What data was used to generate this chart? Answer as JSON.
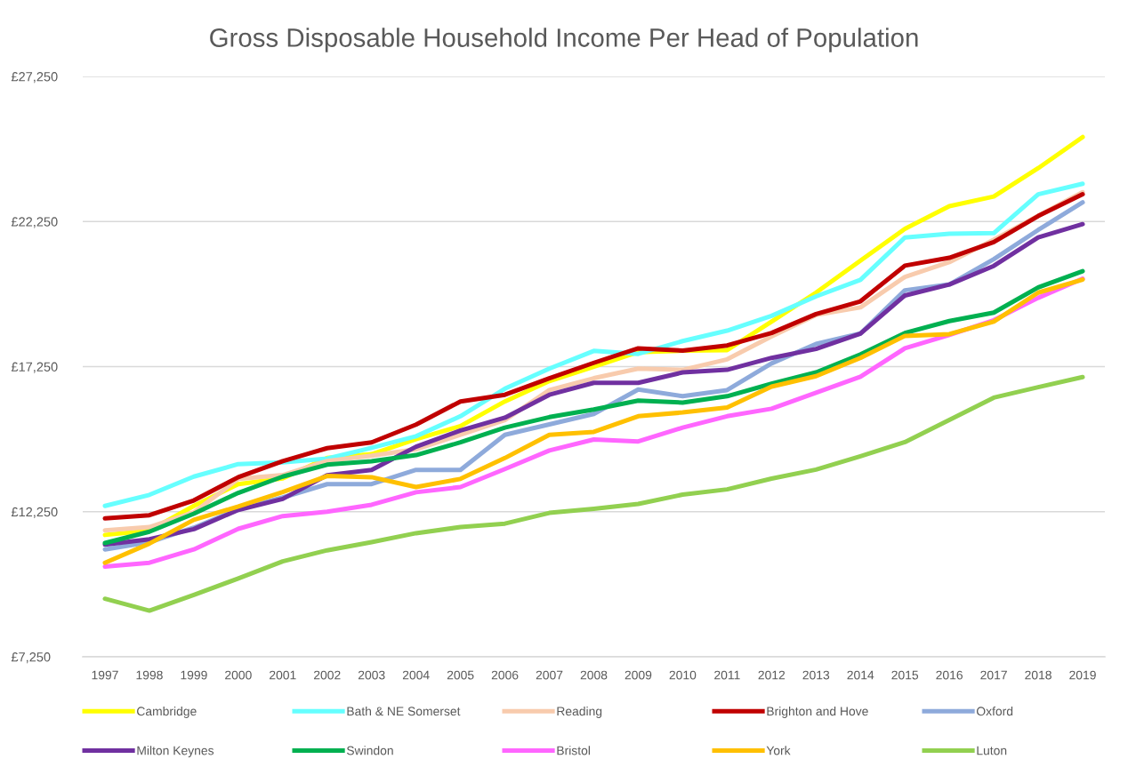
{
  "chart_data": {
    "type": "line",
    "title": "Gross Disposable Household Income Per Head of Population",
    "categories": [
      "1997",
      "1998",
      "1999",
      "2000",
      "2001",
      "2002",
      "2003",
      "2004",
      "2005",
      "2006",
      "2007",
      "2008",
      "2009",
      "2010",
      "2011",
      "2012",
      "2013",
      "2014",
      "2015",
      "2016",
      "2017",
      "2018",
      "2019"
    ],
    "ylim": [
      7250,
      27250
    ],
    "yticks": [
      {
        "value": 7250,
        "label": "£7,250"
      },
      {
        "value": 12250,
        "label": "£12,250"
      },
      {
        "value": 17250,
        "label": "£17,250"
      },
      {
        "value": 22250,
        "label": "£22,250"
      },
      {
        "value": 27250,
        "label": "£27,250"
      }
    ],
    "grid": "y",
    "legend": "bottom",
    "series": [
      {
        "name": "Cambridge",
        "color": "#ffff00",
        "values": [
          11450,
          11600,
          12450,
          13200,
          13400,
          14100,
          14230,
          14750,
          15200,
          16050,
          16750,
          17250,
          17750,
          17800,
          17820,
          18800,
          19800,
          20900,
          22000,
          22780,
          23110,
          24090,
          25160
        ]
      },
      {
        "name": "Bath & NE Somerset",
        "color": "#66ffff",
        "values": [
          12450,
          12830,
          13460,
          13890,
          13950,
          14080,
          14450,
          14850,
          15540,
          16490,
          17180,
          17790,
          17690,
          18130,
          18490,
          19000,
          19670,
          20240,
          21700,
          21830,
          21850,
          23190,
          23550
        ]
      },
      {
        "name": "Reading",
        "color": "#f8cbad",
        "values": [
          11610,
          11720,
          12230,
          13380,
          13510,
          14000,
          14180,
          14400,
          14900,
          15410,
          16440,
          16850,
          17180,
          17140,
          17500,
          18290,
          19030,
          19290,
          20340,
          20850,
          21620,
          22450,
          23260
        ]
      },
      {
        "name": "Brighton and Hove",
        "color": "#c00000",
        "values": [
          12020,
          12130,
          12640,
          13440,
          13990,
          14440,
          14640,
          15250,
          16050,
          16280,
          16850,
          17380,
          17880,
          17800,
          17980,
          18410,
          19060,
          19500,
          20730,
          21000,
          21540,
          22440,
          23190
        ]
      },
      {
        "name": "Oxford",
        "color": "#8eaadb",
        "values": [
          10950,
          11200,
          11700,
          12330,
          12740,
          13200,
          13200,
          13690,
          13690,
          14900,
          15260,
          15620,
          16460,
          16230,
          16440,
          17360,
          18030,
          18390,
          19880,
          20080,
          20950,
          21960,
          22910
        ]
      },
      {
        "name": "Milton Keynes",
        "color": "#7030a0",
        "values": [
          11120,
          11300,
          11650,
          12310,
          12690,
          13510,
          13690,
          14490,
          15050,
          15490,
          16280,
          16690,
          16690,
          17050,
          17140,
          17550,
          17860,
          18390,
          19700,
          20080,
          20720,
          21700,
          22160
        ]
      },
      {
        "name": "Swindon",
        "color": "#00b050",
        "values": [
          11170,
          11560,
          12180,
          12900,
          13460,
          13870,
          13990,
          14200,
          14640,
          15150,
          15510,
          15770,
          16080,
          16010,
          16230,
          16660,
          17050,
          17670,
          18410,
          18820,
          19110,
          19980,
          20540
        ]
      },
      {
        "name": "Bristol",
        "color": "#ff66ff",
        "values": [
          10360,
          10490,
          10950,
          11660,
          12100,
          12250,
          12490,
          12920,
          13100,
          13720,
          14360,
          14740,
          14670,
          15150,
          15540,
          15800,
          16350,
          16900,
          17880,
          18340,
          18850,
          19620,
          20280
        ]
      },
      {
        "name": "York",
        "color": "#ffc000",
        "values": [
          10490,
          11150,
          11970,
          12430,
          12930,
          13480,
          13440,
          13100,
          13380,
          14100,
          14900,
          15000,
          15540,
          15670,
          15840,
          16560,
          16920,
          17550,
          18310,
          18370,
          18800,
          19800,
          20250
        ]
      },
      {
        "name": "Luton",
        "color": "#92d050",
        "values": [
          9250,
          8840,
          9380,
          9950,
          10540,
          10920,
          11200,
          11510,
          11720,
          11840,
          12210,
          12350,
          12520,
          12840,
          13020,
          13390,
          13700,
          14160,
          14650,
          15410,
          16180,
          16540,
          16890
        ]
      }
    ]
  }
}
